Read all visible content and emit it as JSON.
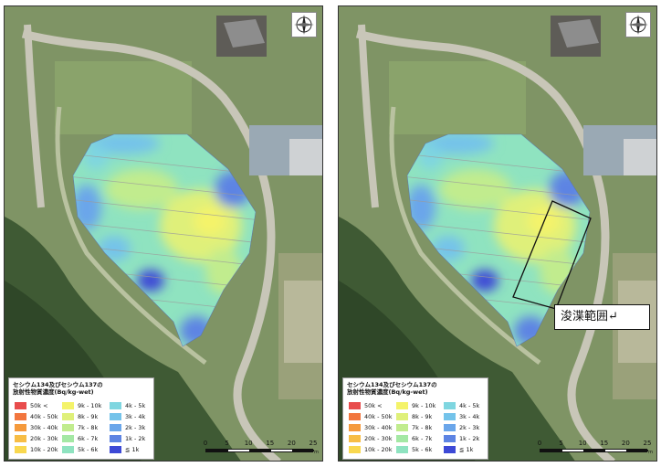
{
  "legend": {
    "title_line1": "セシウム134及びセシウム137の",
    "title_line2": "放射性物質濃度(Bq/kg-wet)",
    "items": [
      {
        "label": "50k <",
        "color": "#e84c4c"
      },
      {
        "label": "40k - 50k",
        "color": "#f2763e"
      },
      {
        "label": "30k - 40k",
        "color": "#f59a3c"
      },
      {
        "label": "20k - 30k",
        "color": "#f7bd45"
      },
      {
        "label": "10k - 20k",
        "color": "#f9d84f"
      },
      {
        "label": "9k - 10k",
        "color": "#f4f36a"
      },
      {
        "label": "8k - 9k",
        "color": "#dff07a"
      },
      {
        "label": "7k - 8k",
        "color": "#c1ec8e"
      },
      {
        "label": "6k - 7k",
        "color": "#a4e8a4"
      },
      {
        "label": "5k - 6k",
        "color": "#8fe3c0"
      },
      {
        "label": "4k - 5k",
        "color": "#7fd6e0"
      },
      {
        "label": "3k - 4k",
        "color": "#74c3ea"
      },
      {
        "label": "2k - 3k",
        "color": "#6aa6ea"
      },
      {
        "label": "1k - 2k",
        "color": "#5d84e3"
      },
      {
        "label": "≦ 1k",
        "color": "#3d49d6"
      }
    ]
  },
  "scale": {
    "ticks": [
      "0",
      "5",
      "10",
      "15",
      "20",
      "25"
    ],
    "unit": "m"
  },
  "annotation": {
    "label": "浚渫範囲↵"
  },
  "compass": {
    "icon": "north-arrow-compass-icon"
  }
}
